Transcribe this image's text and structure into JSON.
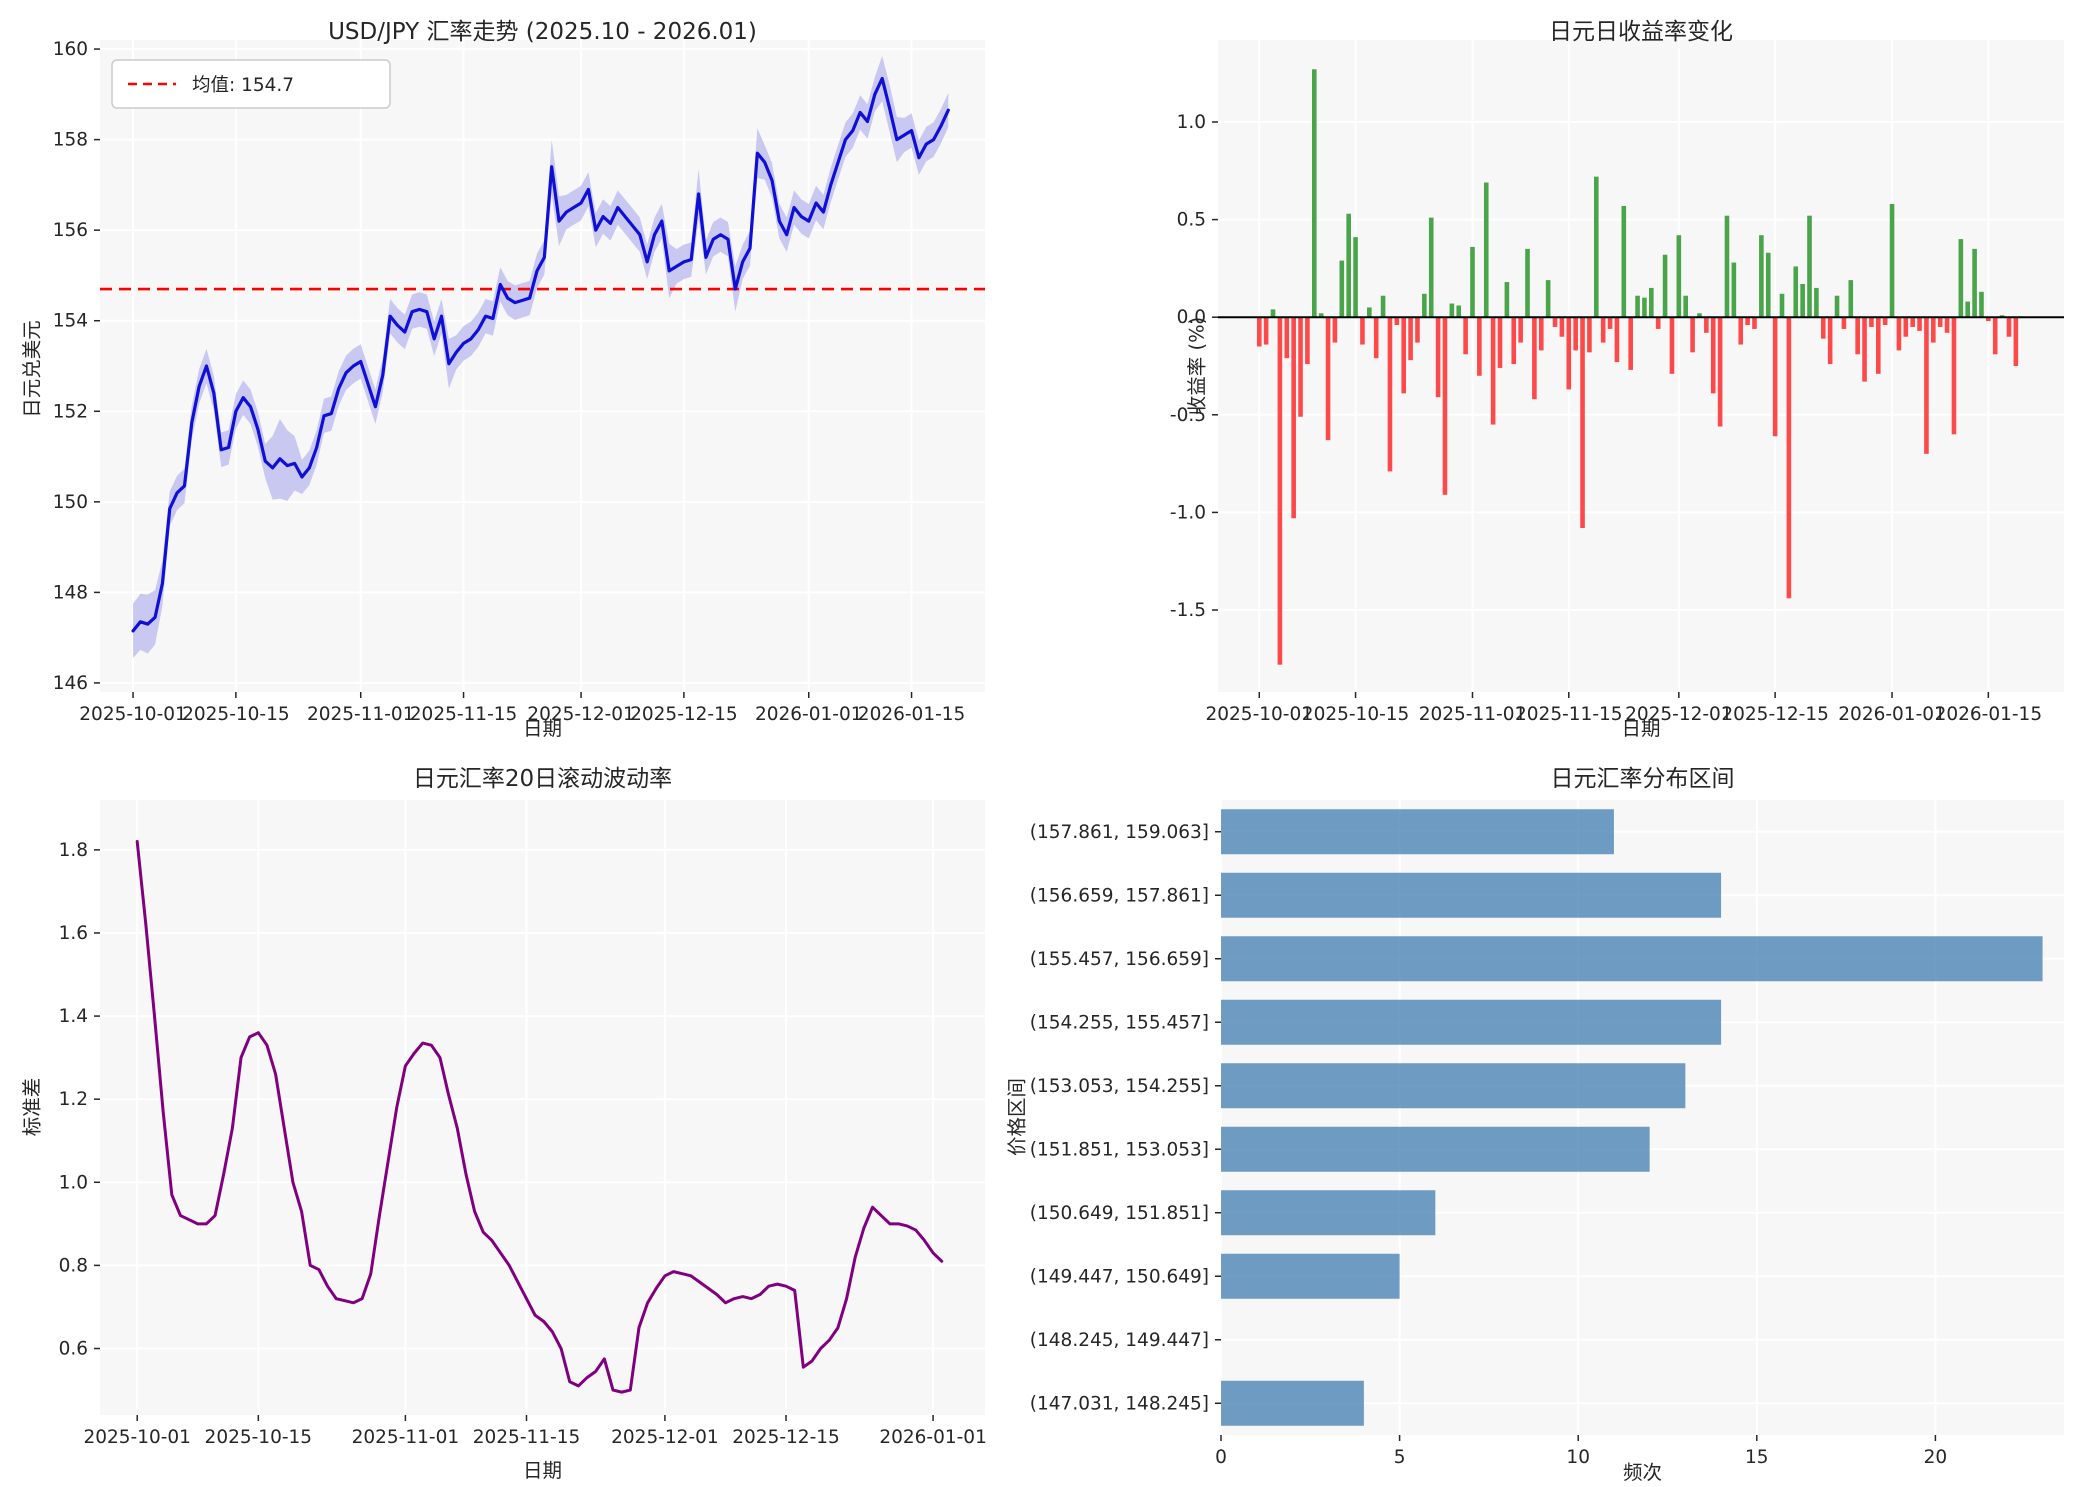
{
  "charts": {
    "price": {
      "type": "line",
      "title": "USD/JPY 汇率走势 (2025.10 - 2026.01)",
      "xlabel": "日期",
      "ylabel": "日元兑美元",
      "legend_label": "均值: 154.7",
      "mean_value": 154.7,
      "ylim": [
        145.8,
        160.2
      ],
      "ytick_labels": [
        "146",
        "148",
        "150",
        "152",
        "154",
        "156",
        "158",
        "160"
      ],
      "ytick_values": [
        146,
        148,
        150,
        152,
        154,
        156,
        158,
        160
      ],
      "xtick_labels": [
        "2025-10-01",
        "2025-10-15",
        "2025-11-01",
        "2025-11-15",
        "2025-12-01",
        "2025-12-15",
        "2026-01-01",
        "2026-01-15"
      ],
      "xtick_days": [
        0,
        14,
        31,
        45,
        61,
        75,
        92,
        106
      ],
      "xlim_days": [
        -4.5,
        116
      ],
      "colors": {
        "line": "#0f0fd6",
        "band": "#c0c0ef",
        "mean": "#ff0000"
      },
      "values": [
        147.15,
        147.35,
        147.3,
        147.45,
        148.2,
        149.85,
        150.2,
        150.35,
        151.75,
        152.55,
        153.0,
        152.4,
        151.15,
        151.2,
        152.0,
        152.3,
        152.1,
        151.6,
        150.9,
        150.75,
        150.95,
        150.8,
        150.85,
        150.55,
        150.75,
        151.2,
        151.9,
        151.95,
        152.5,
        152.85,
        153.0,
        153.1,
        152.6,
        152.1,
        152.8,
        154.1,
        153.9,
        153.75,
        154.2,
        154.25,
        154.2,
        153.6,
        154.1,
        153.05,
        153.3,
        153.5,
        153.6,
        153.8,
        154.1,
        154.05,
        154.8,
        154.5,
        154.4,
        154.45,
        154.5,
        155.1,
        155.4,
        157.4,
        156.2,
        156.4,
        156.5,
        156.6,
        156.9,
        156.0,
        156.3,
        156.15,
        156.5,
        156.3,
        156.1,
        155.9,
        155.3,
        155.9,
        156.2,
        155.1,
        155.2,
        155.3,
        155.35,
        156.8,
        155.4,
        155.8,
        155.9,
        155.8,
        154.7,
        155.3,
        155.6,
        157.7,
        157.5,
        157.1,
        156.2,
        155.9,
        156.5,
        156.3,
        156.2,
        156.6,
        156.4,
        157.0,
        157.5,
        158.0,
        158.2,
        158.6,
        158.4,
        159.0,
        159.35,
        158.7,
        158.0,
        158.1,
        158.2,
        157.6,
        157.9,
        158.0,
        158.3,
        158.65
      ],
      "band_halfwidth": {
        "default": 0.38,
        "overrides": {
          "0": 0.6,
          "1": 0.62,
          "2": 0.65,
          "3": 0.6,
          "4": 0.5,
          "19": 0.7,
          "20": 0.88,
          "21": 0.78,
          "22": 0.6,
          "43": 0.55,
          "57": 0.6,
          "58": 0.55,
          "73": 0.6,
          "77": 0.55,
          "82": 0.5,
          "85": 0.55,
          "102": 0.5,
          "103": 0.52,
          "104": 0.5
        }
      }
    },
    "returns": {
      "type": "bar",
      "title": "日元日收益率变化",
      "xlabel": "日期",
      "ylabel": "收益率 (%)",
      "ylim": [
        -1.92,
        1.42
      ],
      "ytick_labels": [
        "-1.5",
        "-1.0",
        "-0.5",
        "0.0",
        "0.5",
        "1.0"
      ],
      "ytick_values": [
        -1.5,
        -1.0,
        -0.5,
        0.0,
        0.5,
        1.0
      ],
      "xtick_labels": [
        "2025-10-01",
        "2025-10-15",
        "2025-11-01",
        "2025-11-15",
        "2025-12-01",
        "2025-12-15",
        "2026-01-01",
        "2026-01-15"
      ],
      "xtick_days": [
        0,
        14,
        31,
        45,
        61,
        75,
        92,
        106
      ],
      "xlim_days": [
        -6,
        117
      ],
      "colors": {
        "positive": "#4aa44a",
        "negative": "#fc4a4a",
        "zero_line": "#000000"
      },
      "values": [
        -0.15,
        -0.14,
        0.04,
        -1.78,
        -0.21,
        -1.03,
        -0.51,
        -0.24,
        1.27,
        0.02,
        -0.63,
        -0.13,
        0.29,
        0.53,
        0.41,
        -0.14,
        0.05,
        -0.21,
        0.11,
        -0.79,
        -0.04,
        -0.39,
        -0.22,
        -0.13,
        0.12,
        0.51,
        -0.41,
        -0.91,
        0.07,
        0.06,
        -0.19,
        0.36,
        -0.3,
        0.69,
        -0.55,
        -0.26,
        0.18,
        -0.24,
        -0.13,
        0.35,
        -0.42,
        -0.17,
        0.19,
        -0.05,
        -0.1,
        -0.37,
        -0.17,
        -1.08,
        -0.18,
        0.72,
        -0.13,
        -0.06,
        -0.23,
        0.57,
        -0.27,
        0.11,
        0.1,
        0.15,
        -0.06,
        0.32,
        -0.29,
        0.42,
        0.11,
        -0.18,
        0.02,
        -0.08,
        -0.39,
        -0.56,
        0.52,
        0.28,
        -0.14,
        -0.04,
        -0.06,
        0.42,
        0.33,
        -0.61,
        0.12,
        -1.44,
        0.26,
        0.17,
        0.52,
        0.15,
        -0.11,
        -0.24,
        0.11,
        -0.06,
        0.19,
        -0.19,
        -0.33,
        -0.05,
        -0.29,
        -0.04,
        0.58,
        -0.17,
        -0.1,
        -0.05,
        -0.07,
        -0.7,
        -0.13,
        -0.05,
        -0.08,
        -0.6,
        0.4,
        0.08,
        0.35,
        0.13,
        -0.02,
        -0.19,
        0.01,
        -0.1,
        -0.25
      ]
    },
    "volatility": {
      "type": "line",
      "title": "日元汇率20日滚动波动率",
      "xlabel": "日期",
      "ylabel": "标准差",
      "ylim": [
        0.44,
        1.92
      ],
      "ytick_labels": [
        "0.6",
        "0.8",
        "1.0",
        "1.2",
        "1.4",
        "1.6",
        "1.8"
      ],
      "ytick_values": [
        0.6,
        0.8,
        1.0,
        1.2,
        1.4,
        1.6,
        1.8
      ],
      "xtick_labels": [
        "2025-10-01",
        "2025-10-15",
        "2025-11-01",
        "2025-11-15",
        "2025-12-01",
        "2025-12-15",
        "2026-01-01"
      ],
      "xtick_days": [
        0,
        14,
        31,
        45,
        61,
        75,
        92
      ],
      "xlim_days": [
        -4.3,
        98
      ],
      "colors": {
        "line": "#800080"
      },
      "values": [
        1.82,
        1.62,
        1.4,
        1.17,
        0.97,
        0.92,
        0.91,
        0.9,
        0.9,
        0.92,
        1.02,
        1.13,
        1.3,
        1.35,
        1.36,
        1.33,
        1.26,
        1.13,
        1.0,
        0.93,
        0.8,
        0.79,
        0.75,
        0.72,
        0.715,
        0.71,
        0.72,
        0.78,
        0.92,
        1.05,
        1.18,
        1.28,
        1.31,
        1.335,
        1.33,
        1.3,
        1.21,
        1.13,
        1.02,
        0.93,
        0.88,
        0.86,
        0.83,
        0.8,
        0.76,
        0.72,
        0.68,
        0.665,
        0.64,
        0.6,
        0.52,
        0.51,
        0.53,
        0.545,
        0.575,
        0.5,
        0.495,
        0.5,
        0.65,
        0.71,
        0.745,
        0.775,
        0.785,
        0.78,
        0.775,
        0.76,
        0.745,
        0.73,
        0.71,
        0.72,
        0.725,
        0.72,
        0.73,
        0.75,
        0.755,
        0.75,
        0.74,
        0.555,
        0.57,
        0.6,
        0.62,
        0.65,
        0.72,
        0.82,
        0.89,
        0.94,
        0.92,
        0.9,
        0.9,
        0.895,
        0.885,
        0.86,
        0.83,
        0.81
      ]
    },
    "histogram": {
      "type": "barh",
      "title": "日元汇率分布区间",
      "xlabel": "频次",
      "ylabel": "价格区间",
      "categories": [
        "(157.861, 159.063]",
        "(156.659, 157.861]",
        "(155.457, 156.659]",
        "(154.255, 155.457]",
        "(153.053, 154.255]",
        "(151.851, 153.053]",
        "(150.649, 151.851]",
        "(149.447, 150.649]",
        "(148.245, 149.447]",
        "(147.031, 148.245]"
      ],
      "values": [
        11,
        14,
        23,
        14,
        13,
        12,
        6,
        5,
        0,
        4
      ],
      "xtick_labels": [
        "0",
        "5",
        "10",
        "15",
        "20"
      ],
      "xtick_values": [
        0,
        5,
        10,
        15,
        20
      ],
      "xlim": [
        0,
        23.6
      ],
      "colors": {
        "bar": "#4682B4"
      }
    }
  },
  "chart_data": [
    {
      "type": "line",
      "title": "USD/JPY 汇率走势 (2025.10 - 2026.01)",
      "xlabel": "日期",
      "ylabel": "日元兑美元",
      "legend": [
        "均值: 154.7"
      ],
      "ylim": [
        146,
        160
      ],
      "x_ticks": [
        "2025-10-01",
        "2025-10-15",
        "2025-11-01",
        "2025-11-15",
        "2025-12-01",
        "2025-12-15",
        "2026-01-01",
        "2026-01-15"
      ],
      "note": "daily USD/JPY close with confidence band and red dashed mean at 154.7; values listed in charts.price.values"
    },
    {
      "type": "bar",
      "title": "日元日收益率变化",
      "xlabel": "日期",
      "ylabel": "收益率 (%)",
      "ylim": [
        -1.9,
        1.4
      ],
      "x_ticks": [
        "2025-10-01",
        "2025-10-15",
        "2025-11-01",
        "2025-11-15",
        "2025-12-01",
        "2025-12-15",
        "2026-01-01",
        "2026-01-15"
      ],
      "note": "daily returns in %, green positive / red negative; values listed in charts.returns.values"
    },
    {
      "type": "line",
      "title": "日元汇率20日滚动波动率",
      "xlabel": "日期",
      "ylabel": "标准差",
      "ylim": [
        0.5,
        1.9
      ],
      "x_ticks": [
        "2025-10-01",
        "2025-10-15",
        "2025-11-01",
        "2025-11-15",
        "2025-12-01",
        "2025-12-15",
        "2026-01-01"
      ],
      "note": "20-day rolling std dev; values listed in charts.volatility.values"
    },
    {
      "type": "bar",
      "title": "日元汇率分布区间",
      "xlabel": "频次",
      "ylabel": "价格区间",
      "categories": [
        "(157.861, 159.063]",
        "(156.659, 157.861]",
        "(155.457, 156.659]",
        "(154.255, 155.457]",
        "(153.053, 154.255]",
        "(151.851, 153.053]",
        "(150.649, 151.851]",
        "(149.447, 150.649]",
        "(148.245, 149.447]",
        "(147.031, 148.245]"
      ],
      "values": [
        11,
        14,
        23,
        14,
        13,
        12,
        6,
        5,
        0,
        4
      ],
      "xlim": [
        0,
        23.6
      ]
    }
  ]
}
